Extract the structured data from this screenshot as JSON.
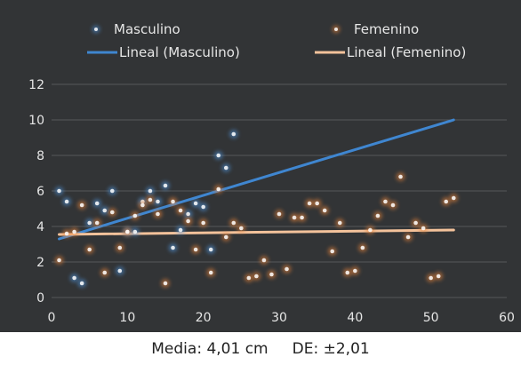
{
  "colors": {
    "background": "#323436",
    "grid": "#55585b",
    "text": "#e6e6e6",
    "masculino": "#4f93d8",
    "femenino": "#e8843a",
    "masculino_line": "#3f86d0",
    "femenino_line": "#f3c29b"
  },
  "caption": {
    "media": "Media: 4,01 cm",
    "de": "DE: ±2,01"
  },
  "chart_data": {
    "type": "scatter",
    "title": "",
    "xlabel": "",
    "ylabel": "",
    "xlim": [
      0,
      60
    ],
    "ylim": [
      0,
      12
    ],
    "x_ticks": [
      "0",
      "10",
      "20",
      "30",
      "40",
      "50",
      "60"
    ],
    "y_ticks": [
      "0",
      "2",
      "4",
      "6",
      "8",
      "10",
      "12"
    ],
    "grid": "horizontal",
    "legend_position": "top",
    "legend": [
      {
        "label": "Masculino",
        "kind": "marker",
        "series": "masculino"
      },
      {
        "label": "Femenino",
        "kind": "marker",
        "series": "femenino"
      },
      {
        "label": "Lineal (Masculino)",
        "kind": "line",
        "series": "masculino"
      },
      {
        "label": "Lineal (Femenino)",
        "kind": "line",
        "series": "femenino"
      }
    ],
    "series": [
      {
        "name": "Masculino",
        "key": "masculino",
        "points": [
          [
            1,
            6.0
          ],
          [
            2,
            5.4
          ],
          [
            3,
            1.1
          ],
          [
            4,
            0.8
          ],
          [
            5,
            4.2
          ],
          [
            6,
            5.3
          ],
          [
            7,
            4.9
          ],
          [
            8,
            6.0
          ],
          [
            9,
            1.5
          ],
          [
            10,
            3.7
          ],
          [
            11,
            3.7
          ],
          [
            12,
            5.4
          ],
          [
            13,
            6.0
          ],
          [
            14,
            5.4
          ],
          [
            15,
            6.3
          ],
          [
            16,
            2.8
          ],
          [
            17,
            3.8
          ],
          [
            18,
            4.7
          ],
          [
            19,
            5.3
          ],
          [
            20,
            5.1
          ],
          [
            21,
            2.7
          ],
          [
            22,
            8.0
          ],
          [
            23,
            7.3
          ],
          [
            24,
            9.2
          ]
        ],
        "trend": {
          "x": [
            1,
            53
          ],
          "y": [
            3.3,
            10.0
          ]
        }
      },
      {
        "name": "Femenino",
        "key": "femenino",
        "points": [
          [
            1,
            2.1
          ],
          [
            2,
            3.6
          ],
          [
            3,
            3.7
          ],
          [
            4,
            5.2
          ],
          [
            5,
            2.7
          ],
          [
            6,
            4.2
          ],
          [
            7,
            1.4
          ],
          [
            8,
            4.8
          ],
          [
            9,
            2.8
          ],
          [
            10,
            3.7
          ],
          [
            11,
            4.6
          ],
          [
            12,
            5.2
          ],
          [
            13,
            5.5
          ],
          [
            14,
            4.7
          ],
          [
            15,
            0.8
          ],
          [
            16,
            5.4
          ],
          [
            17,
            4.9
          ],
          [
            18,
            4.3
          ],
          [
            19,
            2.7
          ],
          [
            20,
            4.2
          ],
          [
            21,
            1.4
          ],
          [
            22,
            6.1
          ],
          [
            23,
            3.4
          ],
          [
            24,
            4.2
          ],
          [
            25,
            3.9
          ],
          [
            26,
            1.1
          ],
          [
            27,
            1.2
          ],
          [
            28,
            2.1
          ],
          [
            29,
            1.3
          ],
          [
            30,
            4.7
          ],
          [
            31,
            1.6
          ],
          [
            32,
            4.5
          ],
          [
            33,
            4.5
          ],
          [
            34,
            5.3
          ],
          [
            35,
            5.3
          ],
          [
            36,
            4.9
          ],
          [
            37,
            2.6
          ],
          [
            38,
            4.2
          ],
          [
            39,
            1.4
          ],
          [
            40,
            1.5
          ],
          [
            41,
            2.8
          ],
          [
            42,
            3.8
          ],
          [
            43,
            4.6
          ],
          [
            44,
            5.4
          ],
          [
            45,
            5.2
          ],
          [
            46,
            6.8
          ],
          [
            47,
            3.4
          ],
          [
            48,
            4.2
          ],
          [
            49,
            3.9
          ],
          [
            50,
            1.1
          ],
          [
            51,
            1.2
          ],
          [
            52,
            5.4
          ],
          [
            53,
            5.6
          ]
        ],
        "trend": {
          "x": [
            1,
            53
          ],
          "y": [
            3.55,
            3.8
          ]
        }
      }
    ]
  }
}
